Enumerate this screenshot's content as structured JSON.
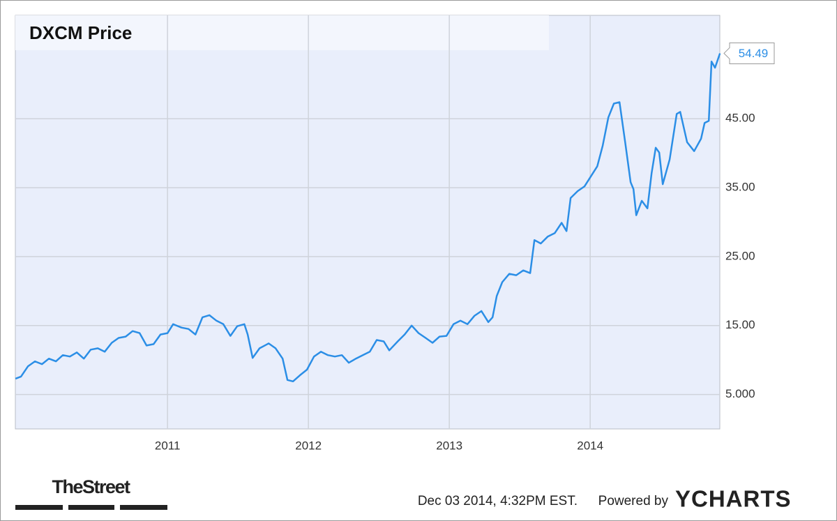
{
  "chart_data": {
    "type": "line",
    "title": "DXCM Price",
    "x": [
      2009.921,
      2009.96,
      2010.01,
      2010.059,
      2010.109,
      2010.158,
      2010.208,
      2010.257,
      2010.307,
      2010.356,
      2010.406,
      2010.455,
      2010.505,
      2010.554,
      2010.604,
      2010.653,
      2010.703,
      2010.752,
      2010.802,
      2010.851,
      2010.901,
      2010.95,
      2011.0,
      2011.04,
      2011.099,
      2011.149,
      2011.198,
      2011.248,
      2011.297,
      2011.347,
      2011.396,
      2011.446,
      2011.495,
      2011.545,
      2011.569,
      2011.604,
      2011.653,
      2011.718,
      2011.767,
      2011.817,
      2011.851,
      2011.891,
      2011.941,
      2011.99,
      2012.04,
      2012.089,
      2012.139,
      2012.188,
      2012.238,
      2012.287,
      2012.337,
      2012.386,
      2012.436,
      2012.485,
      2012.535,
      2012.574,
      2012.634,
      2012.683,
      2012.733,
      2012.782,
      2012.832,
      2012.881,
      2012.931,
      2012.98,
      2013.03,
      2013.079,
      2013.129,
      2013.178,
      2013.228,
      2013.277,
      2013.307,
      2013.337,
      2013.376,
      2013.426,
      2013.475,
      2013.525,
      2013.574,
      2013.604,
      2013.649,
      2013.698,
      2013.748,
      2013.797,
      2013.832,
      2013.861,
      2013.911,
      2013.96,
      2014.0,
      2014.05,
      2014.089,
      2014.129,
      2014.168,
      2014.208,
      2014.248,
      2014.287,
      2014.307,
      2014.327,
      2014.366,
      2014.406,
      2014.436,
      2014.465,
      2014.49,
      2014.515,
      2014.564,
      2014.614,
      2014.639,
      2014.688,
      2014.738,
      2014.787,
      2014.812,
      2014.842,
      2014.861,
      2014.886,
      2014.921
    ],
    "series": [
      {
        "name": "DXCM Price",
        "color": "#2b8ee6",
        "values": [
          7.3,
          7.6,
          9.1,
          9.8,
          9.4,
          10.2,
          9.8,
          10.7,
          10.5,
          11.1,
          10.2,
          11.5,
          11.7,
          11.2,
          12.5,
          13.2,
          13.4,
          14.2,
          13.9,
          12.1,
          12.3,
          13.7,
          13.9,
          15.2,
          14.7,
          14.5,
          13.7,
          16.2,
          16.5,
          15.7,
          15.2,
          13.5,
          14.9,
          15.2,
          13.7,
          10.3,
          11.7,
          12.4,
          11.7,
          10.2,
          7.1,
          6.9,
          7.8,
          8.6,
          10.5,
          11.2,
          10.7,
          10.5,
          10.7,
          9.6,
          10.2,
          10.7,
          11.2,
          12.9,
          12.7,
          11.4,
          12.7,
          13.7,
          15.0,
          13.9,
          13.2,
          12.5,
          13.4,
          13.5,
          15.2,
          15.7,
          15.2,
          16.4,
          17.1,
          15.5,
          16.2,
          19.3,
          21.3,
          22.5,
          22.3,
          23.0,
          22.6,
          27.4,
          26.9,
          27.9,
          28.4,
          29.9,
          28.7,
          33.5,
          34.5,
          35.2,
          36.5,
          38.1,
          41.1,
          45.2,
          47.2,
          47.4,
          41.6,
          35.8,
          34.8,
          31.0,
          33.1,
          32.0,
          37.1,
          40.8,
          40.1,
          35.5,
          39.1,
          45.7,
          46.0,
          41.6,
          40.3,
          42.1,
          44.4,
          44.7,
          53.3,
          52.4,
          54.49
        ]
      }
    ],
    "xlim": [
      2009.92,
      2014.92
    ],
    "xticks": [
      2011,
      2012,
      2013,
      2014
    ],
    "ylim": [
      0,
      60
    ],
    "yticks": [
      {
        "value": 5,
        "label": "5.000"
      },
      {
        "value": 15,
        "label": "15.00"
      },
      {
        "value": 25,
        "label": "25.00"
      },
      {
        "value": 35,
        "label": "35.00"
      },
      {
        "value": 45,
        "label": "45.00"
      }
    ],
    "grid": true
  },
  "footer": {
    "brand": "TheStreet",
    "timestamp": "Dec 03 2014, 4:32PM EST.",
    "powered": "Powered by",
    "provider": "YCHARTS"
  }
}
